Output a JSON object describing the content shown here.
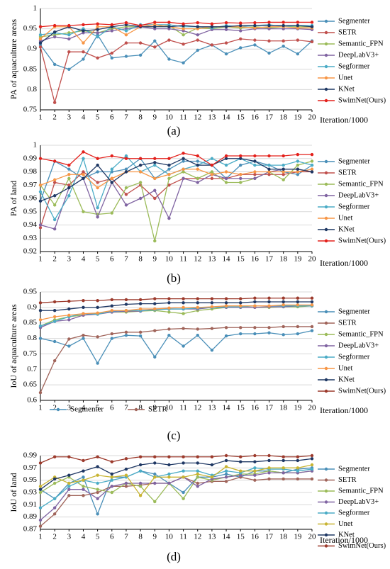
{
  "chart_data": [
    {
      "type": "line",
      "ylabel": "PA of aquaculture areas",
      "xlabel": "Iteration/1000",
      "caption": "(a)",
      "x": [
        1,
        2,
        3,
        4,
        5,
        6,
        7,
        8,
        9,
        10,
        11,
        12,
        13,
        14,
        15,
        16,
        17,
        18,
        19,
        20
      ],
      "xlim": [
        1,
        20
      ],
      "xticks": [
        1,
        2,
        3,
        4,
        5,
        6,
        7,
        8,
        9,
        10,
        11,
        12,
        13,
        14,
        15,
        16,
        17,
        18,
        19,
        20
      ],
      "ylim": [
        0.75,
        1
      ],
      "yticks": [
        0.75,
        0.8,
        0.85,
        0.9,
        0.95,
        1
      ],
      "grid": true,
      "series": [
        {
          "name": "Segmenter",
          "color": "#4a8fb8",
          "values": [
            0.91,
            0.862,
            0.85,
            0.875,
            0.935,
            0.878,
            0.882,
            0.885,
            0.92,
            0.875,
            0.866,
            0.897,
            0.91,
            0.888,
            0.903,
            0.91,
            0.89,
            0.907,
            0.888,
            0.92
          ]
        },
        {
          "name": "SETR",
          "color": "#c0504d",
          "values": [
            0.905,
            0.768,
            0.893,
            0.893,
            0.878,
            0.89,
            0.915,
            0.915,
            0.905,
            0.922,
            0.912,
            0.922,
            0.91,
            0.915,
            0.925,
            0.922,
            0.92,
            0.92,
            0.922,
            0.918
          ]
        },
        {
          "name": "Semantic_FPN",
          "color": "#9bbb59",
          "values": [
            0.93,
            0.935,
            0.94,
            0.945,
            0.94,
            0.95,
            0.955,
            0.955,
            0.955,
            0.958,
            0.935,
            0.952,
            0.95,
            0.955,
            0.952,
            0.955,
            0.952,
            0.955,
            0.955,
            0.955
          ]
        },
        {
          "name": "DeepLabV3+",
          "color": "#8064a2",
          "values": [
            0.92,
            0.93,
            0.925,
            0.94,
            0.94,
            0.945,
            0.95,
            0.955,
            0.95,
            0.95,
            0.945,
            0.935,
            0.948,
            0.948,
            0.945,
            0.95,
            0.95,
            0.95,
            0.95,
            0.948
          ]
        },
        {
          "name": "Segformer",
          "color": "#4bacc6",
          "values": [
            0.935,
            0.94,
            0.935,
            0.95,
            0.93,
            0.955,
            0.945,
            0.96,
            0.96,
            0.96,
            0.955,
            0.955,
            0.952,
            0.958,
            0.955,
            0.958,
            0.96,
            0.955,
            0.958,
            0.958
          ]
        },
        {
          "name": "Unet",
          "color": "#f79646",
          "values": [
            0.925,
            0.955,
            0.955,
            0.915,
            0.955,
            0.955,
            0.935,
            0.955,
            0.96,
            0.955,
            0.95,
            0.95,
            0.955,
            0.955,
            0.955,
            0.952,
            0.955,
            0.955,
            0.952,
            0.952
          ]
        },
        {
          "name": "KNet",
          "color": "#1f3864",
          "values": [
            0.915,
            0.942,
            0.955,
            0.945,
            0.948,
            0.955,
            0.96,
            0.955,
            0.955,
            0.955,
            0.958,
            0.955,
            0.955,
            0.955,
            0.958,
            0.958,
            0.958,
            0.958,
            0.958,
            0.955
          ]
        },
        {
          "name": "SwimNet(Ours)",
          "color": "#e3201b",
          "values": [
            0.955,
            0.958,
            0.958,
            0.96,
            0.962,
            0.96,
            0.965,
            0.958,
            0.966,
            0.966,
            0.962,
            0.965,
            0.962,
            0.965,
            0.964,
            0.965,
            0.966,
            0.966,
            0.966,
            0.966
          ]
        }
      ]
    },
    {
      "type": "line",
      "ylabel": "PA of land",
      "xlabel": "Iteration/1000",
      "caption": "(b)",
      "x": [
        1,
        2,
        3,
        4,
        5,
        6,
        7,
        8,
        9,
        10,
        11,
        12,
        13,
        14,
        15,
        16,
        17,
        18,
        19,
        20
      ],
      "xlim": [
        1,
        20
      ],
      "xticks": [
        1,
        2,
        3,
        4,
        5,
        6,
        7,
        8,
        9,
        10,
        11,
        12,
        13,
        14,
        15,
        16,
        17,
        18,
        19,
        20
      ],
      "ylim": [
        0.92,
        1
      ],
      "yticks": [
        0.92,
        0.93,
        0.94,
        0.95,
        0.96,
        0.97,
        0.98,
        0.99,
        1
      ],
      "grid": true,
      "series": [
        {
          "name": "Segmenter",
          "color": "#4a8fb8",
          "values": [
            0.958,
            0.988,
            0.982,
            0.975,
            0.98,
            0.98,
            0.982,
            0.99,
            0.975,
            0.982,
            0.988,
            0.988,
            0.985,
            0.975,
            0.985,
            0.988,
            0.985,
            0.98,
            0.978,
            0.985
          ]
        },
        {
          "name": "SETR",
          "color": "#c0504d",
          "values": [
            0.938,
            0.972,
            0.97,
            0.98,
            0.972,
            0.975,
            0.963,
            0.97,
            0.96,
            0.97,
            0.975,
            0.975,
            0.975,
            0.975,
            0.978,
            0.978,
            0.978,
            0.978,
            0.98,
            0.98
          ]
        },
        {
          "name": "Semantic_FPN",
          "color": "#9bbb59",
          "values": [
            0.97,
            0.955,
            0.975,
            0.95,
            0.948,
            0.949,
            0.968,
            0.972,
            0.928,
            0.975,
            0.98,
            0.975,
            0.98,
            0.972,
            0.972,
            0.975,
            0.98,
            0.974,
            0.985,
            0.988
          ]
        },
        {
          "name": "DeepLabV3+",
          "color": "#8064a2",
          "values": [
            0.94,
            0.937,
            0.968,
            0.975,
            0.946,
            0.972,
            0.955,
            0.96,
            0.966,
            0.945,
            0.975,
            0.972,
            0.978,
            0.975,
            0.975,
            0.975,
            0.98,
            0.982,
            0.982,
            0.98
          ]
        },
        {
          "name": "Segformer",
          "color": "#4bacc6",
          "values": [
            0.965,
            0.944,
            0.962,
            0.99,
            0.953,
            0.982,
            0.992,
            0.98,
            0.985,
            0.978,
            0.982,
            0.985,
            0.99,
            0.985,
            0.99,
            0.985,
            0.985,
            0.985,
            0.988,
            0.985
          ]
        },
        {
          "name": "Unet",
          "color": "#f79646",
          "values": [
            0.97,
            0.974,
            0.978,
            0.978,
            0.968,
            0.975,
            0.98,
            0.98,
            0.975,
            0.978,
            0.982,
            0.982,
            0.978,
            0.98,
            0.978,
            0.98,
            0.98,
            0.98,
            0.98,
            0.982
          ]
        },
        {
          "name": "KNet",
          "color": "#1f3864",
          "values": [
            0.958,
            0.962,
            0.968,
            0.975,
            0.985,
            0.972,
            0.98,
            0.985,
            0.987,
            0.985,
            0.99,
            0.985,
            0.985,
            0.99,
            0.99,
            0.988,
            0.982,
            0.982,
            0.982,
            0.98
          ]
        },
        {
          "name": "SwimNet(Ours)",
          "color": "#e3201b",
          "values": [
            0.99,
            0.988,
            0.985,
            0.995,
            0.99,
            0.992,
            0.99,
            0.99,
            0.99,
            0.99,
            0.994,
            0.992,
            0.985,
            0.992,
            0.992,
            0.992,
            0.992,
            0.992,
            0.993,
            0.993
          ]
        }
      ]
    },
    {
      "type": "line",
      "ylabel": "IoU of aquaculture areas",
      "xlabel": "Iteration/1000",
      "caption": "(c)",
      "x": [
        1,
        2,
        3,
        4,
        5,
        6,
        7,
        8,
        9,
        10,
        11,
        12,
        13,
        14,
        15,
        16,
        17,
        18,
        19,
        20
      ],
      "xlim": [
        1,
        20
      ],
      "xticks": [
        1,
        2,
        3,
        4,
        5,
        6,
        7,
        8,
        9,
        10,
        11,
        12,
        13,
        14,
        15,
        16,
        17,
        18,
        19,
        20
      ],
      "ylim": [
        0.6,
        0.95
      ],
      "yticks": [
        0.6,
        0.65,
        0.7,
        0.75,
        0.8,
        0.85,
        0.9,
        0.95
      ],
      "grid": true,
      "bottom_legend": [
        "Segmenter",
        "SETR"
      ],
      "series": [
        {
          "name": "Segmenter",
          "color": "#4a8fb8",
          "values": [
            0.8,
            0.79,
            0.775,
            0.8,
            0.72,
            0.8,
            0.81,
            0.808,
            0.74,
            0.81,
            0.775,
            0.81,
            0.762,
            0.808,
            0.815,
            0.815,
            0.818,
            0.812,
            0.815,
            0.825
          ]
        },
        {
          "name": "SETR",
          "color": "#a0645a",
          "values": [
            0.625,
            0.728,
            0.798,
            0.81,
            0.805,
            0.815,
            0.82,
            0.82,
            0.825,
            0.83,
            0.832,
            0.83,
            0.832,
            0.835,
            0.835,
            0.835,
            0.835,
            0.838,
            0.838,
            0.838
          ]
        },
        {
          "name": "Semantic_FPN",
          "color": "#9bbb59",
          "values": [
            0.84,
            0.86,
            0.87,
            0.875,
            0.88,
            0.885,
            0.885,
            0.888,
            0.89,
            0.885,
            0.88,
            0.89,
            0.895,
            0.9,
            0.9,
            0.9,
            0.9,
            0.902,
            0.902,
            0.905
          ]
        },
        {
          "name": "DeepLabV3+",
          "color": "#8064a2",
          "values": [
            0.835,
            0.855,
            0.86,
            0.875,
            0.878,
            0.885,
            0.888,
            0.888,
            0.895,
            0.895,
            0.895,
            0.895,
            0.9,
            0.9,
            0.9,
            0.9,
            0.902,
            0.902,
            0.905,
            0.905
          ]
        },
        {
          "name": "Segformer",
          "color": "#4bacc6",
          "values": [
            0.84,
            0.855,
            0.87,
            0.88,
            0.878,
            0.888,
            0.89,
            0.89,
            0.892,
            0.895,
            0.895,
            0.898,
            0.9,
            0.902,
            0.902,
            0.905,
            0.905,
            0.905,
            0.905,
            0.905
          ]
        },
        {
          "name": "Unet",
          "color": "#f79646",
          "values": [
            0.86,
            0.87,
            0.875,
            0.88,
            0.882,
            0.89,
            0.89,
            0.895,
            0.895,
            0.898,
            0.9,
            0.9,
            0.902,
            0.905,
            0.905,
            0.905,
            0.905,
            0.908,
            0.908,
            0.908
          ]
        },
        {
          "name": "KNet",
          "color": "#1f3864",
          "values": [
            0.89,
            0.89,
            0.895,
            0.9,
            0.9,
            0.905,
            0.91,
            0.912,
            0.912,
            0.915,
            0.915,
            0.915,
            0.915,
            0.915,
            0.915,
            0.918,
            0.918,
            0.918,
            0.918,
            0.918
          ]
        },
        {
          "name": "SwimNet(Ours)",
          "color": "#9c3a2c",
          "values": [
            0.915,
            0.918,
            0.92,
            0.922,
            0.922,
            0.925,
            0.925,
            0.925,
            0.928,
            0.928,
            0.928,
            0.928,
            0.928,
            0.928,
            0.928,
            0.93,
            0.93,
            0.93,
            0.93,
            0.93
          ]
        }
      ]
    },
    {
      "type": "line",
      "ylabel": "IoU of land",
      "xlabel": "Iteration/1000",
      "caption": "(d)",
      "x": [
        1,
        2,
        3,
        4,
        5,
        6,
        7,
        8,
        9,
        10,
        11,
        12,
        13,
        14,
        15,
        16,
        17,
        18,
        19,
        20
      ],
      "xlim": [
        1,
        20
      ],
      "xticks": [
        1,
        2,
        3,
        4,
        5,
        6,
        7,
        8,
        9,
        10,
        11,
        12,
        13,
        14,
        15,
        16,
        17,
        18,
        19,
        20
      ],
      "ylim": [
        0.87,
        0.99
      ],
      "yticks": [
        0.87,
        0.89,
        0.91,
        0.93,
        0.95,
        0.97,
        0.99
      ],
      "grid": true,
      "series": [
        {
          "name": "Segmenter",
          "color": "#4a8fb8",
          "values": [
            0.935,
            0.92,
            0.945,
            0.955,
            0.895,
            0.955,
            0.955,
            0.965,
            0.96,
            0.945,
            0.93,
            0.955,
            0.955,
            0.96,
            0.955,
            0.965,
            0.965,
            0.962,
            0.968,
            0.97
          ]
        },
        {
          "name": "SETR",
          "color": "#a0645a",
          "values": [
            0.875,
            0.895,
            0.925,
            0.925,
            0.93,
            0.94,
            0.94,
            0.942,
            0.945,
            0.945,
            0.955,
            0.945,
            0.948,
            0.948,
            0.955,
            0.95,
            0.952,
            0.952,
            0.952,
            0.952
          ]
        },
        {
          "name": "Semantic_FPN",
          "color": "#9bbb59",
          "values": [
            0.93,
            0.945,
            0.955,
            0.94,
            0.935,
            0.93,
            0.945,
            0.94,
            0.915,
            0.945,
            0.92,
            0.955,
            0.95,
            0.955,
            0.96,
            0.96,
            0.965,
            0.962,
            0.962,
            0.965
          ]
        },
        {
          "name": "DeepLabV3+",
          "color": "#8064a2",
          "values": [
            0.885,
            0.905,
            0.935,
            0.935,
            0.92,
            0.94,
            0.945,
            0.945,
            0.945,
            0.945,
            0.955,
            0.94,
            0.952,
            0.955,
            0.958,
            0.958,
            0.962,
            0.962,
            0.962,
            0.965
          ]
        },
        {
          "name": "Segformer",
          "color": "#4bacc6",
          "values": [
            0.905,
            0.92,
            0.94,
            0.95,
            0.945,
            0.95,
            0.955,
            0.965,
            0.955,
            0.96,
            0.965,
            0.965,
            0.958,
            0.965,
            0.962,
            0.97,
            0.968,
            0.968,
            0.965,
            0.968
          ]
        },
        {
          "name": "Unet",
          "color": "#c8b432",
          "values": [
            0.94,
            0.955,
            0.945,
            0.95,
            0.958,
            0.955,
            0.958,
            0.925,
            0.955,
            0.955,
            0.955,
            0.96,
            0.955,
            0.972,
            0.965,
            0.965,
            0.97,
            0.97,
            0.97,
            0.975
          ]
        },
        {
          "name": "KNet",
          "color": "#1f3864",
          "values": [
            0.935,
            0.952,
            0.958,
            0.965,
            0.972,
            0.96,
            0.968,
            0.975,
            0.978,
            0.975,
            0.978,
            0.978,
            0.975,
            0.982,
            0.98,
            0.98,
            0.982,
            0.982,
            0.982,
            0.985
          ]
        },
        {
          "name": "SwimNet(Ours)",
          "color": "#9c3a2c",
          "values": [
            0.978,
            0.988,
            0.988,
            0.982,
            0.988,
            0.98,
            0.985,
            0.988,
            0.988,
            0.988,
            0.988,
            0.988,
            0.988,
            0.99,
            0.988,
            0.99,
            0.99,
            0.988,
            0.988,
            0.99
          ]
        }
      ]
    }
  ]
}
